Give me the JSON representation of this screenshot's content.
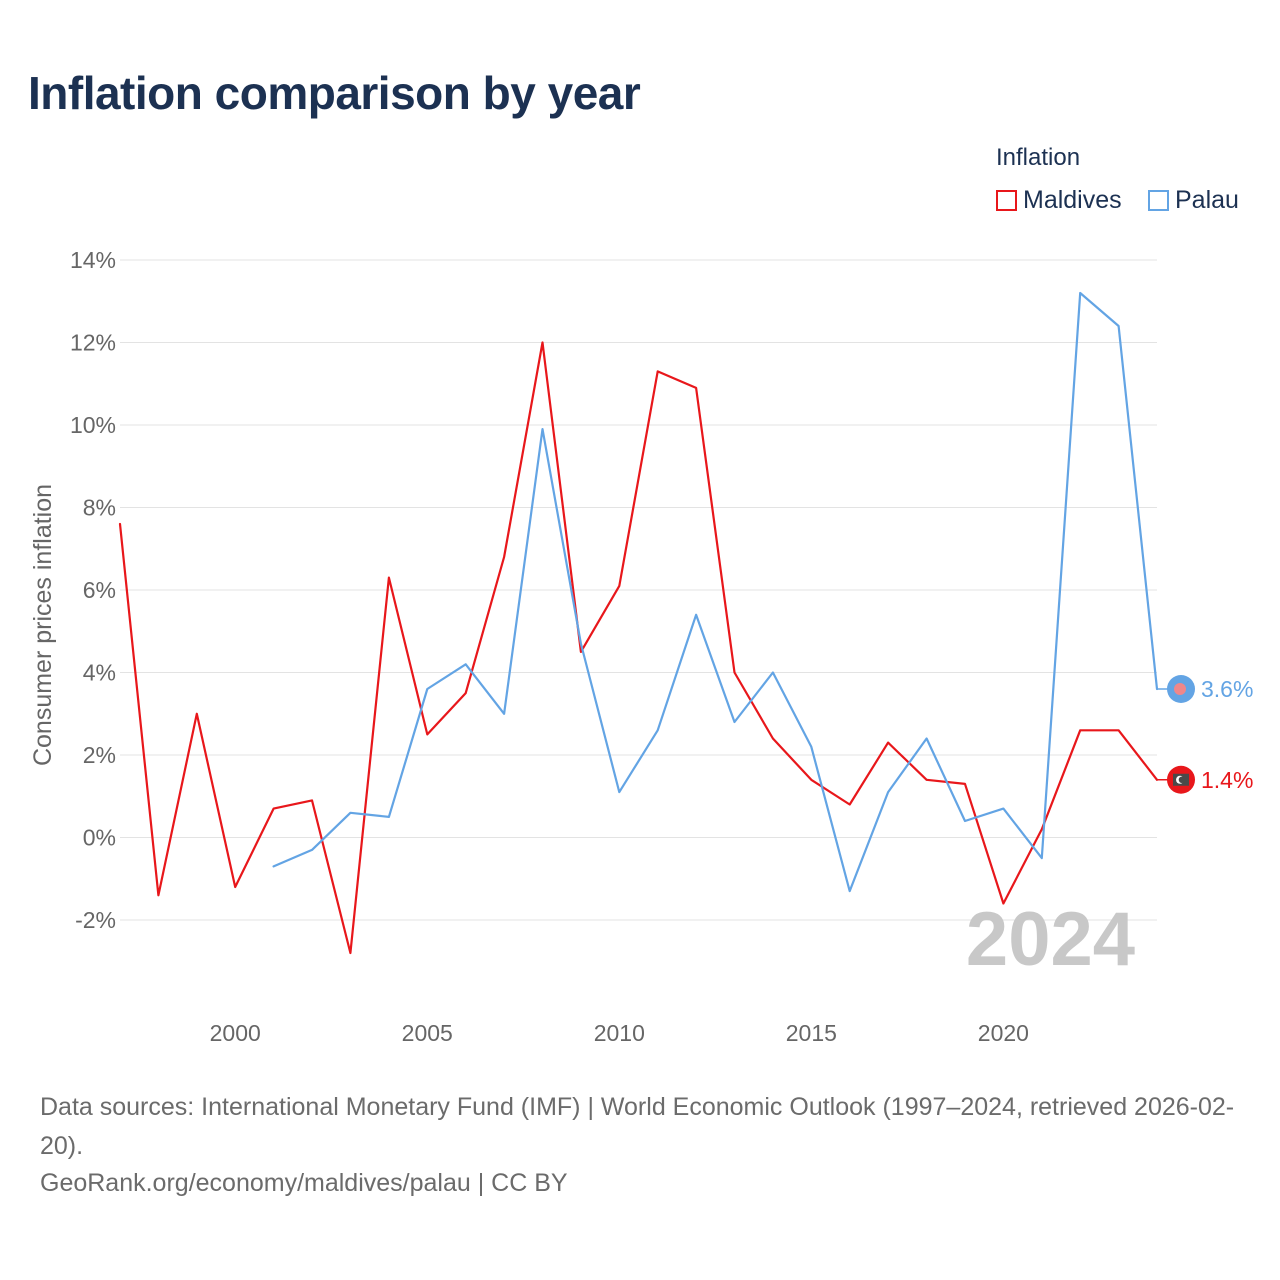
{
  "title": "Inflation comparison by year",
  "legend": {
    "title": "Inflation",
    "items": [
      {
        "label": "Maldives",
        "color": "#e8171b"
      },
      {
        "label": "Palau",
        "color": "#63a4e4"
      }
    ]
  },
  "footer": {
    "sources": "Data sources: International Monetary Fund (IMF) | World Economic Outlook (1997–2024, retrieved 2026-02-20).",
    "link": "GeoRank.org/economy/maldives/palau | CC BY"
  },
  "chart_data": {
    "type": "line",
    "title": "Inflation comparison by year",
    "xlabel": "",
    "ylabel": "Consumer prices inflation",
    "xlim": [
      1997,
      2024
    ],
    "ylim": [
      -4,
      14
    ],
    "x_ticks": [
      2000,
      2005,
      2010,
      2015,
      2020
    ],
    "x_tick_labels": [
      "2000",
      "2005",
      "2010",
      "2015",
      "2020"
    ],
    "y_ticks": [
      -2,
      0,
      2,
      4,
      6,
      8,
      10,
      12,
      14
    ],
    "y_tick_labels": [
      "-2%",
      "0%",
      "2%",
      "4%",
      "6%",
      "8%",
      "10%",
      "12%",
      "14%"
    ],
    "grid": true,
    "legend_position": "top-right",
    "year_annotation": "2024",
    "series": [
      {
        "name": "Maldives",
        "color": "#e8171b",
        "x": [
          1997,
          1998,
          1999,
          2000,
          2001,
          2002,
          2003,
          2004,
          2005,
          2006,
          2007,
          2008,
          2009,
          2010,
          2011,
          2012,
          2013,
          2014,
          2015,
          2016,
          2017,
          2018,
          2019,
          2020,
          2021,
          2022,
          2023,
          2024
        ],
        "values": [
          7.6,
          -1.4,
          3.0,
          -1.2,
          0.7,
          0.9,
          -2.8,
          6.3,
          2.5,
          3.5,
          6.8,
          12.0,
          4.5,
          6.1,
          11.3,
          10.9,
          4.0,
          2.4,
          1.4,
          0.8,
          2.3,
          1.4,
          1.3,
          -1.6,
          0.2,
          2.6,
          2.6,
          1.4
        ],
        "end_label": "1.4%",
        "marker_icon": "maldives-flag-icon"
      },
      {
        "name": "Palau",
        "color": "#63a4e4",
        "x": [
          2001,
          2002,
          2003,
          2004,
          2005,
          2006,
          2007,
          2008,
          2009,
          2010,
          2011,
          2012,
          2013,
          2014,
          2015,
          2016,
          2017,
          2018,
          2019,
          2020,
          2021,
          2022,
          2023,
          2024
        ],
        "values": [
          -0.7,
          -0.3,
          0.6,
          0.5,
          3.6,
          4.2,
          3.0,
          9.9,
          4.7,
          1.1,
          2.6,
          5.4,
          2.8,
          4.0,
          2.2,
          -1.3,
          1.1,
          2.4,
          0.4,
          0.7,
          -0.5,
          13.2,
          12.4,
          3.6
        ],
        "end_label": "3.6%",
        "marker_icon": "palau-flag-icon"
      }
    ]
  }
}
